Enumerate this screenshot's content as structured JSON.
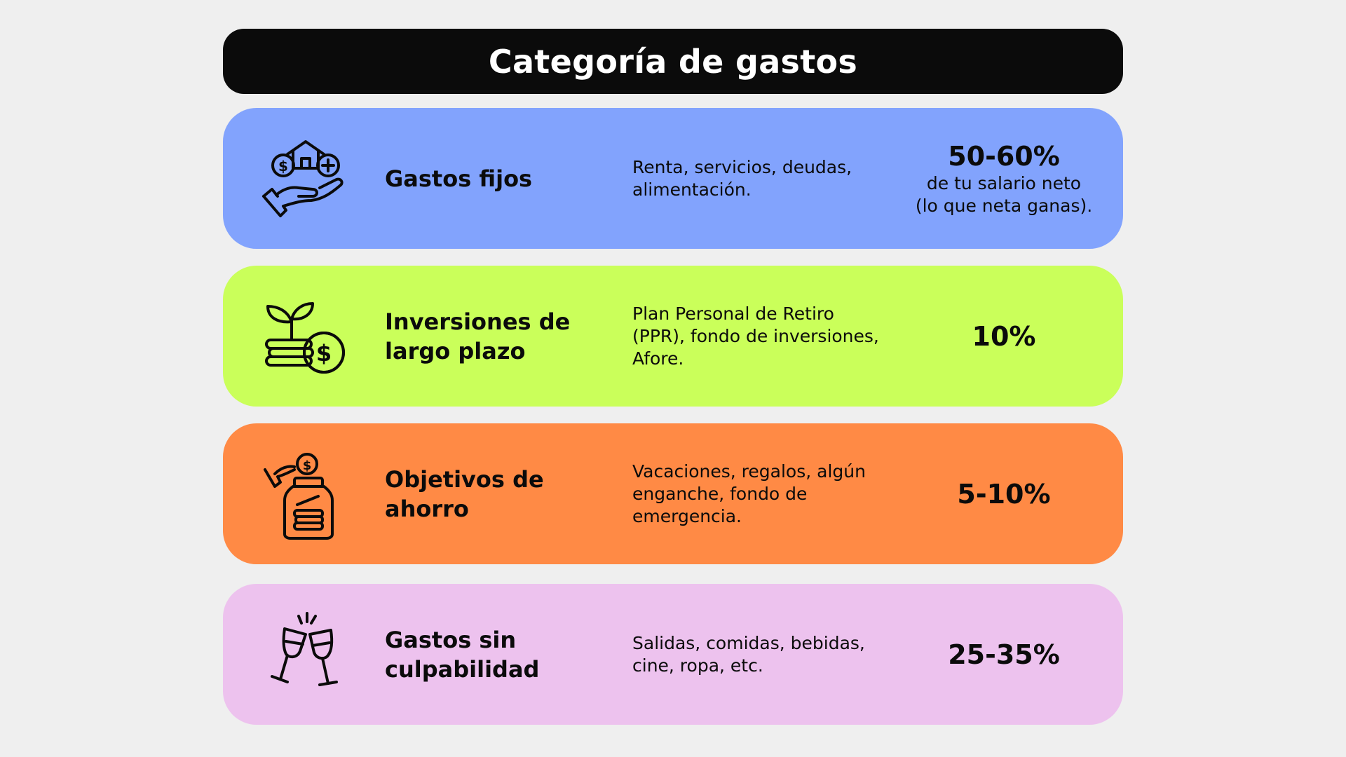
{
  "title": "Categoría de gastos",
  "colors": {
    "background": "#efefef",
    "title_bar": "#0b0b0b",
    "fixed": "#82a3fd",
    "investments": "#caff5a",
    "savings": "#ff8a45",
    "guilt_free": "#edc2ee"
  },
  "rows": [
    {
      "icon": "hand-house-money-icon",
      "name": "Gastos fijos",
      "description": "Renta, servicios, deudas, alimentación.",
      "percent": "50-60%",
      "note_line1": "de tu salario neto",
      "note_line2": "(lo que neta ganas)."
    },
    {
      "icon": "plant-coins-icon",
      "name": "Inversiones de largo plazo",
      "description": "Plan Personal de Retiro (PPR), fondo de inversiones, Afore.",
      "percent": "10%"
    },
    {
      "icon": "savings-jar-icon",
      "name": "Objetivos de ahorro",
      "description": "Vacaciones, regalos, algún enganche, fondo de emergencia.",
      "percent": "5-10%"
    },
    {
      "icon": "toast-glasses-icon",
      "name": "Gastos sin culpabilidad",
      "description": "Salidas, comidas, bebidas, cine, ropa, etc.",
      "percent": "25-35%"
    }
  ]
}
